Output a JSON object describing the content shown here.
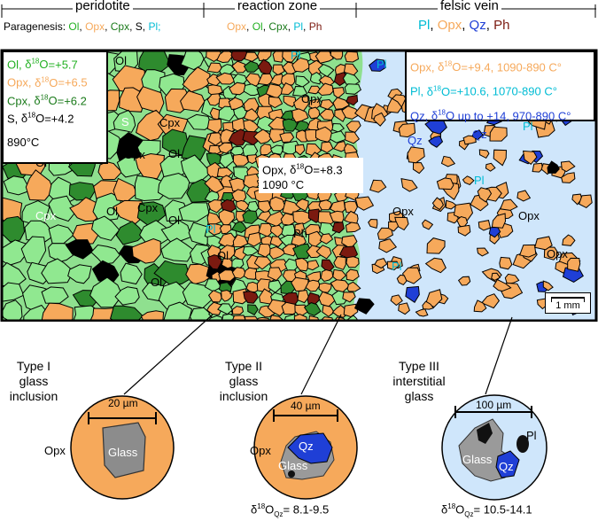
{
  "colors": {
    "ol": "#90e890",
    "opx": "#f6a95b",
    "cpx": "#2e8b2e",
    "pl": "#00bcd4",
    "qz": "#1f3fd6",
    "ph": "#7b1a10",
    "sulfide": "#000000",
    "vein_bg": "#cfe6fb",
    "glass": "#8a8a8a"
  },
  "header": {
    "zones": [
      "peridotite",
      "reaction zone",
      "felsic vein"
    ],
    "paragenesis_prefix": "Paragenesis:",
    "peridotite_minerals": [
      {
        "t": "Ol",
        "c": "ol"
      },
      {
        "t": ", ",
        "c": "k"
      },
      {
        "t": "Opx",
        "c": "opx"
      },
      {
        "t": ", ",
        "c": "k"
      },
      {
        "t": "Cpx",
        "c": "cpx"
      },
      {
        "t": ", ",
        "c": "k"
      },
      {
        "t": "S",
        "c": "k"
      },
      {
        "t": ", ",
        "c": "k"
      },
      {
        "t": "Pl;",
        "c": "pl"
      }
    ],
    "reaction_minerals": [
      {
        "t": "Opx",
        "c": "opx"
      },
      {
        "t": ", ",
        "c": "k"
      },
      {
        "t": "Ol",
        "c": "ol"
      },
      {
        "t": ", ",
        "c": "k"
      },
      {
        "t": "Cpx",
        "c": "cpx"
      },
      {
        "t": ", ",
        "c": "k"
      },
      {
        "t": "Pl",
        "c": "pl"
      },
      {
        "t": ", ",
        "c": "k"
      },
      {
        "t": "Ph",
        "c": "ph"
      }
    ],
    "vein_minerals": [
      {
        "t": "Pl",
        "c": "pl"
      },
      {
        "t": ", ",
        "c": "k"
      },
      {
        "t": "Opx",
        "c": "opx"
      },
      {
        "t": ", ",
        "c": "k"
      },
      {
        "t": "Qz",
        "c": "qz"
      },
      {
        "t": ", ",
        "c": "k"
      },
      {
        "t": "Ph",
        "c": "ph"
      }
    ]
  },
  "isotope_boxes": {
    "peridotite": {
      "lines": [
        {
          "mineral": "Ol",
          "c": "ol",
          "value": "=+5.7"
        },
        {
          "mineral": "Opx",
          "c": "opx",
          "value": "=+6.5"
        },
        {
          "mineral": "Cpx",
          "c": "cpx",
          "value": "=+6.2"
        },
        {
          "mineral": "S",
          "c": "k",
          "value": "=+4.2"
        }
      ],
      "temperature": "890°C"
    },
    "reaction": {
      "mineral": "Opx",
      "value": "=+8.3",
      "temperature": "1090 °C"
    },
    "vein": [
      {
        "mineral": "Opx",
        "c": "opx",
        "text": "=+9.4, 1090-890 C°"
      },
      {
        "mineral": "Pl",
        "c": "pl",
        "text": "=+10.6, 1070-890 C°"
      },
      {
        "mineral": "Qz",
        "c": "qz",
        "text": " up to +14, 970-890 C°"
      }
    ]
  },
  "map_labels": {
    "ol": "Ol",
    "cpx": "Cpx",
    "opx": "Opx",
    "s": "S",
    "pl": "Pl",
    "ph": "Ph",
    "qz": "Qz"
  },
  "scale_bar": "1 mm",
  "inclusions": [
    {
      "title": "Type I\nglass\ninclusion",
      "scale": "20 µm",
      "host": "Opx",
      "glass": "Glass",
      "delta": ""
    },
    {
      "title": "Type II\nglass\ninclusion",
      "scale": "40 µm",
      "host": "Opx",
      "glass": "Glass",
      "qz": "Qz",
      "delta_value": "= 8.1-9.5"
    },
    {
      "title": "Type III\ninterstitial\nglass",
      "scale": "100 µm",
      "glass": "Glass",
      "qz": "Qz",
      "pl": "Pl",
      "delta_value": "= 10.5-14.1"
    }
  ],
  "delta_symbol": "δ",
  "mass_number": "18",
  "oxygen": "O",
  "qz_sub": "Qz"
}
